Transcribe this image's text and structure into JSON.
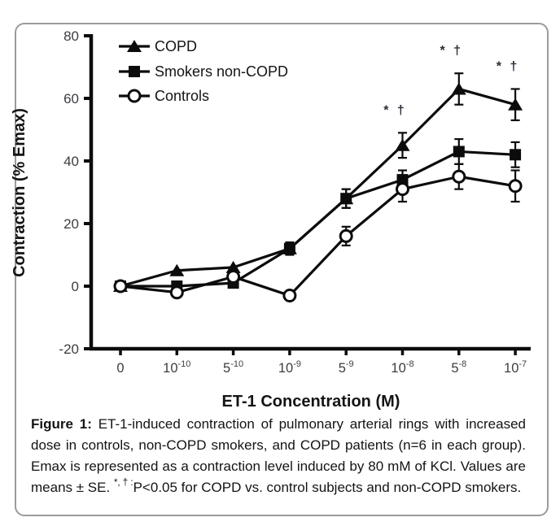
{
  "chart_data": {
    "type": "line",
    "title": "",
    "xlabel": "ET-1 Concentration (M)",
    "ylabel": "Contraction (% Emax)",
    "ylim": [
      -20,
      80
    ],
    "yticks": [
      80,
      60,
      40,
      20,
      0,
      -20
    ],
    "grid": false,
    "legend_position": "top-left-inside",
    "categories": [
      {
        "base": "0",
        "exp": ""
      },
      {
        "base": "10",
        "exp": "-10"
      },
      {
        "base": "5",
        "exp": "-10"
      },
      {
        "base": "10",
        "exp": "-9"
      },
      {
        "base": "5",
        "exp": "-9"
      },
      {
        "base": "10",
        "exp": "-8"
      },
      {
        "base": "5",
        "exp": "-8"
      },
      {
        "base": "10",
        "exp": "-7"
      }
    ],
    "series": [
      {
        "name": "COPD",
        "marker": "filled-triangle",
        "values": [
          0,
          5,
          6,
          12,
          28,
          45,
          63,
          58
        ],
        "errors": [
          0,
          0,
          0,
          0,
          3,
          4,
          5,
          5
        ]
      },
      {
        "name": "Smokers non-COPD",
        "marker": "filled-square",
        "values": [
          0,
          0,
          1,
          12,
          28,
          34,
          43,
          42
        ],
        "errors": [
          0,
          0,
          0,
          2,
          3,
          3,
          4,
          4
        ]
      },
      {
        "name": "Controls",
        "marker": "open-circle",
        "values": [
          0,
          -2,
          3,
          -3,
          16,
          31,
          35,
          32
        ],
        "errors": [
          0,
          0,
          0,
          0,
          3,
          4,
          4,
          5
        ]
      }
    ],
    "annotations": [
      {
        "text": "* †",
        "category_index": 5,
        "y": 55
      },
      {
        "text": "* †",
        "category_index": 6,
        "y": 74
      },
      {
        "text": "* †",
        "category_index": 7,
        "y": 69
      }
    ],
    "colors": {
      "line": "#0c0c0c",
      "tick_label": "#3d3d42",
      "axis_title": "#141414",
      "annotation": "#2b2b38",
      "frame_border": "#9b9b9b"
    }
  },
  "caption": {
    "label": "Figure 1:",
    "body1": " ET-1-induced contraction of pulmonary arterial rings with increased dose in controls, non-COPD smokers, and COPD patients (n=6 in each group).  Emax is represented as a contraction level induced by 80 mM of KCl. Values are means ± SE. ",
    "sup": "*, † :",
    "body2": "P<0.05 for COPD vs. control subjects and non-COPD smokers."
  }
}
